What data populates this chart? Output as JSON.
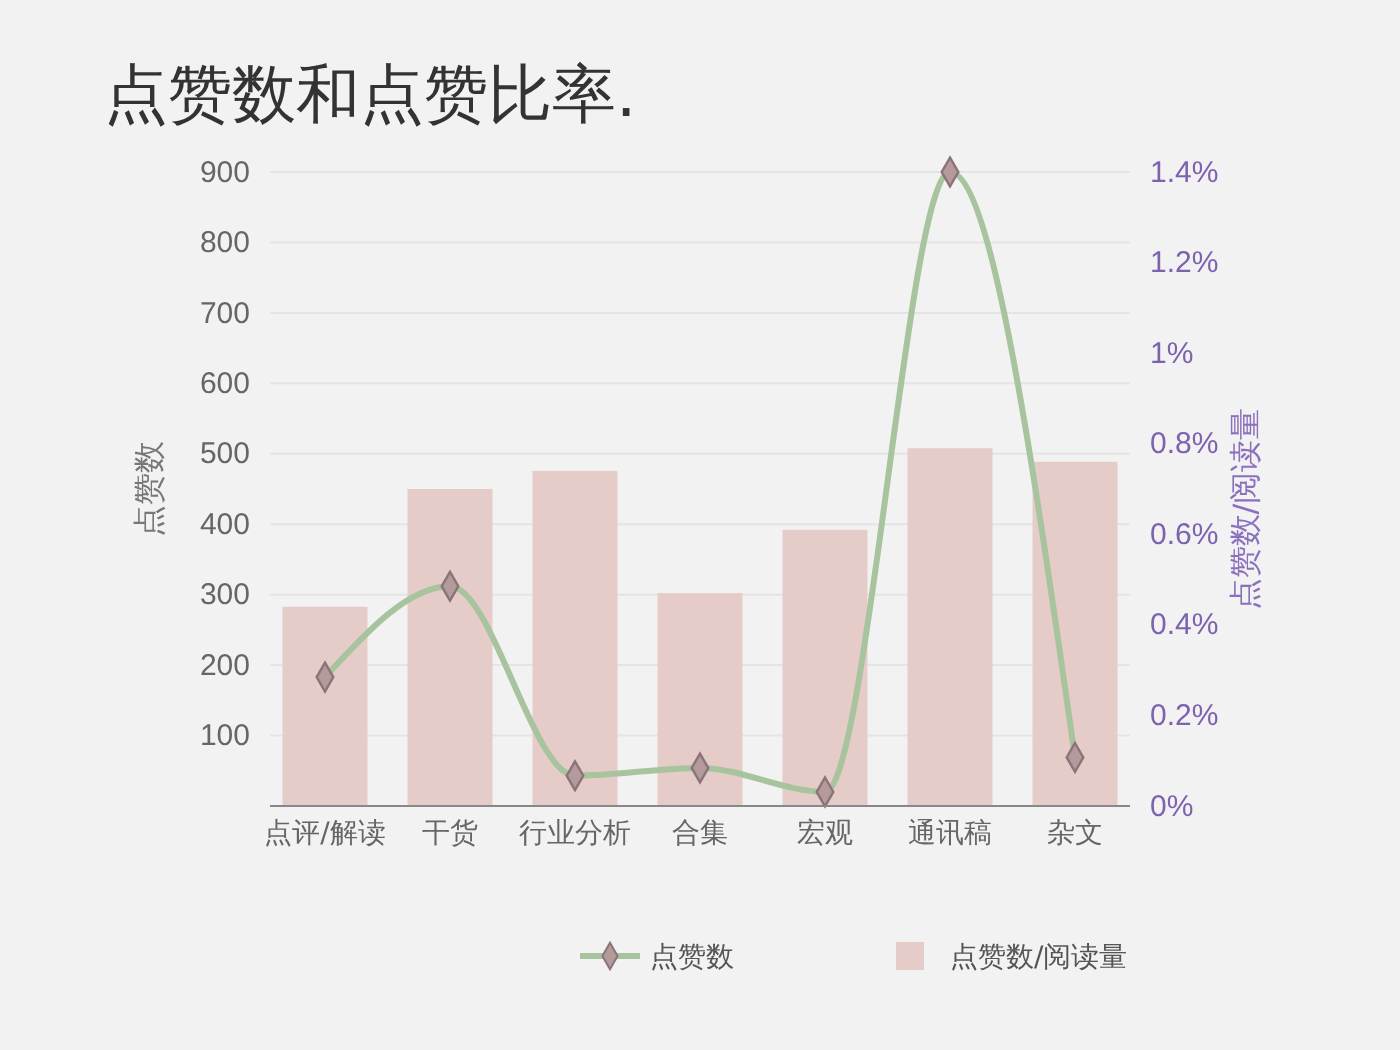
{
  "chart_data": {
    "type": "bar",
    "title": "点赞数和点赞比率.",
    "ylabel": "点赞数",
    "y2label": "点赞数/阅读量",
    "categories": [
      "点评/解读",
      "干货",
      "行业分析",
      "合集",
      "宏观",
      "通讯稿",
      "杂文"
    ],
    "series": [
      {
        "name": "点赞数/阅读量",
        "axis": "y2",
        "color": "#e5ccc8",
        "values": [
          0.44,
          0.7,
          0.74,
          0.47,
          0.61,
          0.79,
          0.76
        ]
      },
      {
        "name": "点赞数",
        "type": "line",
        "axis": "y",
        "color": "#a8c49e",
        "marker": "diamond",
        "values": [
          183,
          312,
          43,
          54,
          20,
          900,
          69
        ]
      }
    ],
    "ylim": [
      0,
      900
    ],
    "yticks": [
      100,
      200,
      300,
      400,
      500,
      600,
      700,
      800,
      900
    ],
    "y2lim": [
      0,
      1.4
    ],
    "y2ticks": [
      {
        "value": 0,
        "label": "0%"
      },
      {
        "value": 0.2,
        "label": "0.2%"
      },
      {
        "value": 0.4,
        "label": "0.4%"
      },
      {
        "value": 0.6,
        "label": "0.6%"
      },
      {
        "value": 0.8,
        "label": "0.8%"
      },
      {
        "value": 1,
        "label": "1%"
      },
      {
        "value": 1.2,
        "label": "1.2%"
      },
      {
        "value": 1.4,
        "label": "1.4%"
      }
    ],
    "grid": "y",
    "legend": "bottom"
  }
}
